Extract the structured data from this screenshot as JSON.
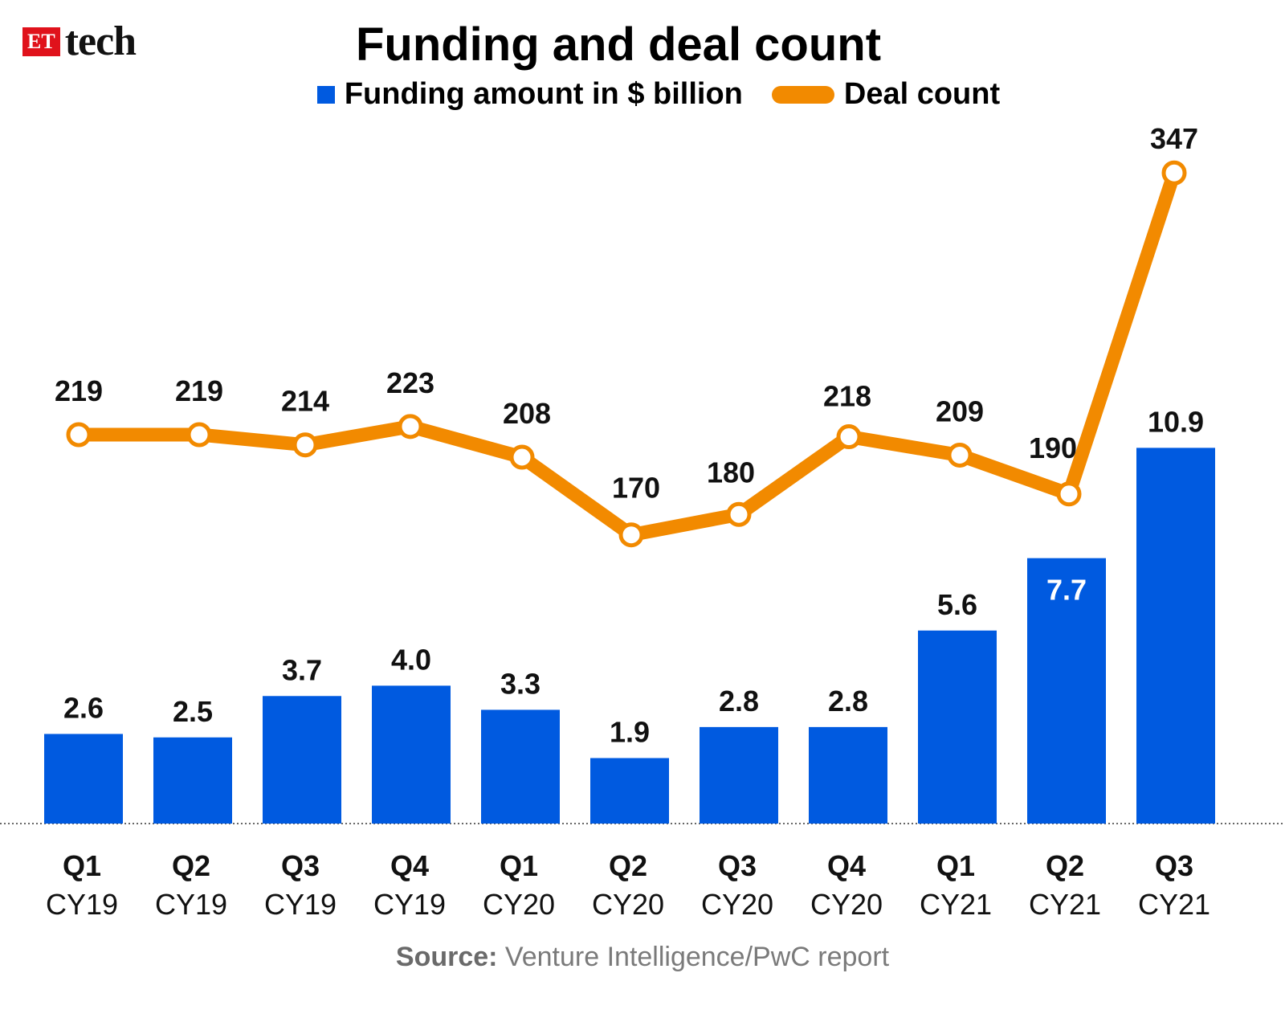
{
  "header": {
    "brand_badge": "ET",
    "brand_word": "tech",
    "title": "Funding and deal count"
  },
  "legend": {
    "bars": "Funding amount in $ billion",
    "line": "Deal count"
  },
  "source": {
    "label": "Source:",
    "text": " Venture Intelligence/PwC report"
  },
  "colors": {
    "bar": "#005ae0",
    "line": "#f28a00",
    "marker_fill": "#ffffff"
  },
  "chart_data": {
    "type": "bar",
    "title": "Funding and deal count",
    "categories": [
      [
        "Q1",
        "CY19"
      ],
      [
        "Q2",
        "CY19"
      ],
      [
        "Q3",
        "CY19"
      ],
      [
        "Q4",
        "CY19"
      ],
      [
        "Q1",
        "CY20"
      ],
      [
        "Q2",
        "CY20"
      ],
      [
        "Q3",
        "CY20"
      ],
      [
        "Q4",
        "CY20"
      ],
      [
        "Q1",
        "CY21"
      ],
      [
        "Q2",
        "CY21"
      ],
      [
        "Q3",
        "CY21"
      ]
    ],
    "series": [
      {
        "name": "Funding amount in $ billion",
        "type": "bar",
        "values": [
          2.6,
          2.5,
          3.7,
          4.0,
          3.3,
          1.9,
          2.8,
          2.8,
          5.6,
          7.7,
          10.9
        ],
        "labels": [
          "2.6",
          "2.5",
          "3.7",
          "4.0",
          "3.3",
          "1.9",
          "2.8",
          "2.8",
          "5.6",
          "7.7",
          "10.9"
        ]
      },
      {
        "name": "Deal count",
        "type": "line",
        "values": [
          219,
          219,
          214,
          223,
          208,
          170,
          180,
          218,
          209,
          190,
          347
        ],
        "labels": [
          "219",
          "219",
          "214",
          "223",
          "208",
          "170",
          "180",
          "218",
          "209",
          "190",
          "347"
        ]
      }
    ],
    "grid": false,
    "legend": "top-center"
  }
}
